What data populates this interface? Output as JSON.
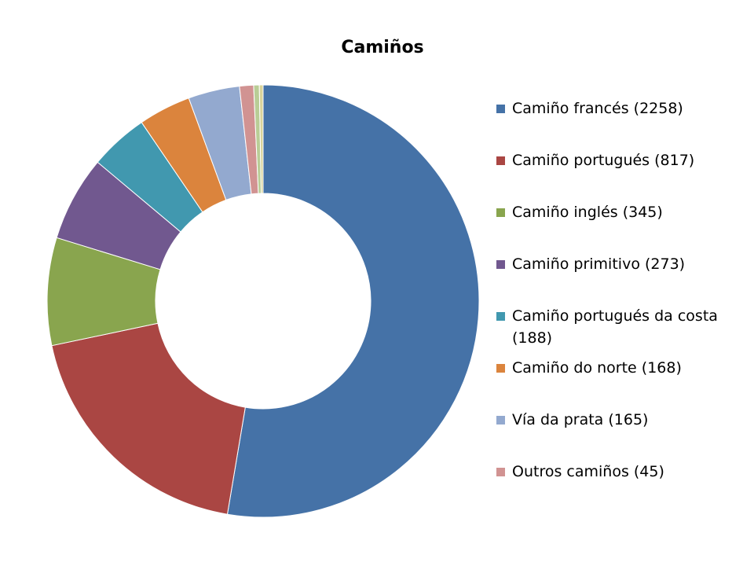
{
  "chart_data": {
    "type": "donut",
    "title": "Camiños",
    "categories": [
      "Camiño francés (2258)",
      "Camiño portugués (817)",
      "Camiño inglés (345)",
      "Camiño primitivo (273)",
      "Camiño portugués da costa (188)",
      "Camiño do norte (168)",
      "Vía da prata (165)",
      "Outros camiños (45)",
      null,
      null
    ],
    "values": [
      2258,
      817,
      345,
      273,
      188,
      168,
      165,
      45,
      18,
      12
    ],
    "colors": [
      "#4572A7",
      "#AA4643",
      "#89A54E",
      "#71588F",
      "#4198AF",
      "#DB843D",
      "#93A9CF",
      "#D19392",
      "#B9CD96",
      "#D9D39A"
    ],
    "legend": "right"
  }
}
